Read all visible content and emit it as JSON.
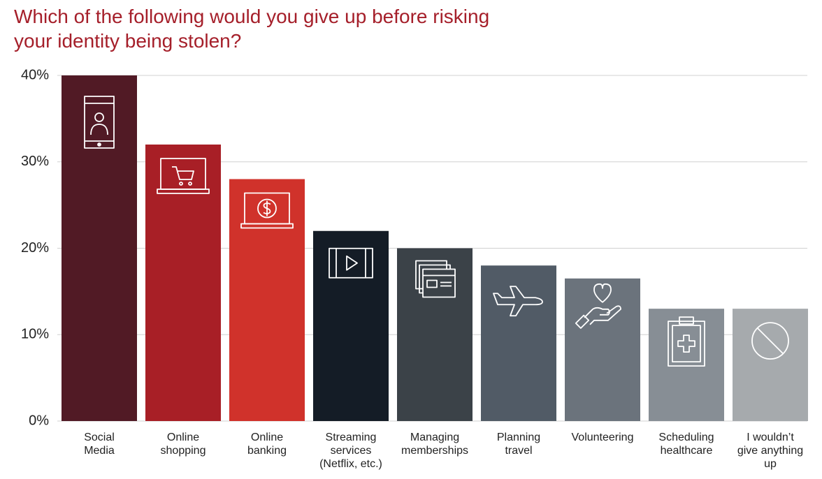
{
  "chart_data": {
    "type": "bar",
    "title": "Which of the following would you give up before risking your identity being stolen?",
    "categories": [
      "Social\nMedia",
      "Online\nshopping",
      "Online\nbanking",
      "Streaming\nservices\n(Netflix, etc.)",
      "Managing\nmemberships",
      "Planning\ntravel",
      "Volunteering",
      "Scheduling\nhealthcare",
      "I wouldn’t\ngive anything\nup"
    ],
    "values": [
      40,
      32,
      28,
      22,
      20,
      18,
      16.5,
      13,
      13
    ],
    "colors": [
      "#511a25",
      "#a81f26",
      "#d0322b",
      "#141c26",
      "#3b4248",
      "#515b66",
      "#6b737c",
      "#878e95",
      "#a6aaad"
    ],
    "ylim": [
      0,
      40
    ],
    "yticks": [
      {
        "value": 0,
        "label": "0%"
      },
      {
        "value": 10,
        "label": "10%"
      },
      {
        "value": 20,
        "label": "20%"
      },
      {
        "value": 30,
        "label": "30%"
      },
      {
        "value": 40,
        "label": "40%"
      }
    ],
    "grid": true
  }
}
